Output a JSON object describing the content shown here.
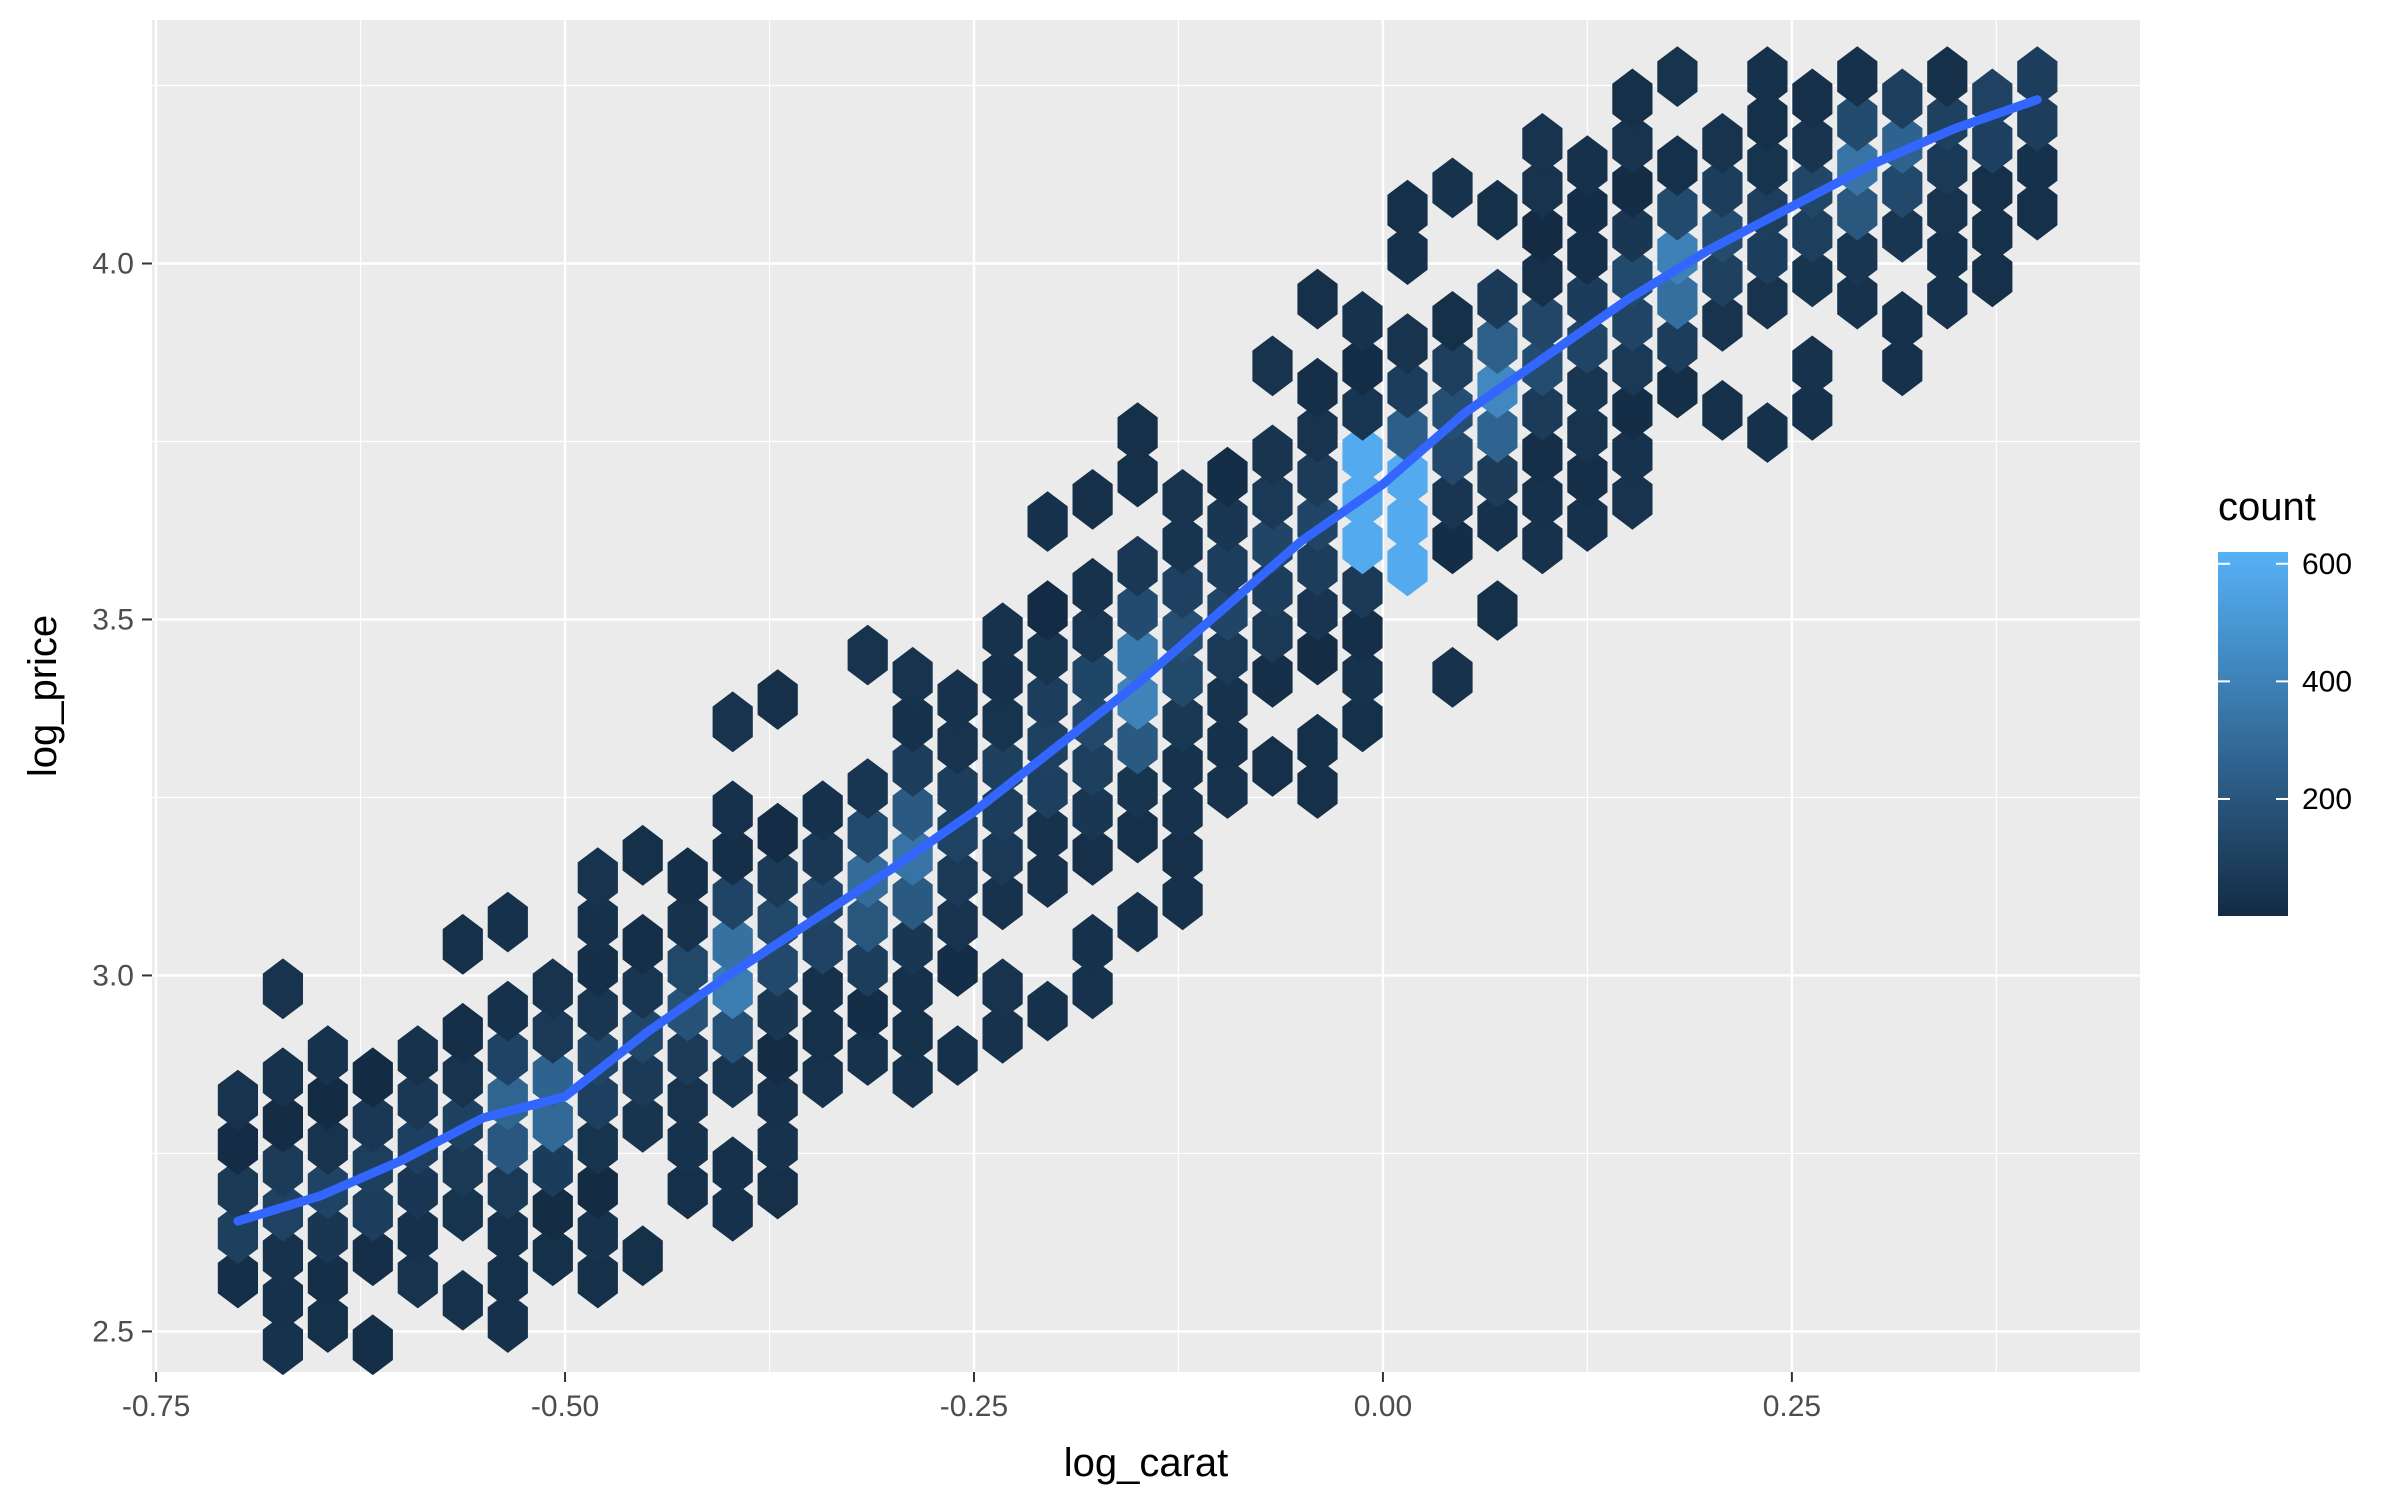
{
  "chart_data": {
    "type": "hexbin",
    "xlabel": "log_carat",
    "ylabel": "log_price",
    "xlim": [
      -0.7525,
      0.4628
    ],
    "ylim": [
      2.443,
      4.342
    ],
    "x_ticks": [
      {
        "value": -0.75,
        "label": "-0.75"
      },
      {
        "value": -0.5,
        "label": "-0.50"
      },
      {
        "value": -0.25,
        "label": "-0.25"
      },
      {
        "value": 0.0,
        "label": "0.00"
      },
      {
        "value": 0.25,
        "label": "0.25"
      }
    ],
    "y_ticks": [
      {
        "value": 2.5,
        "label": "2.5"
      },
      {
        "value": 3.0,
        "label": "3.0"
      },
      {
        "value": 3.5,
        "label": "3.5"
      },
      {
        "value": 4.0,
        "label": "4.0"
      }
    ],
    "grid": true,
    "panel_background": "#ebebeb",
    "hexbin": {
      "x_range": [
        -0.7,
        0.4
      ],
      "color_low": "#132b43",
      "color_high": "#56b1f7",
      "count_range": [
        1,
        620
      ],
      "cells_rendered": "approximate density following the fitted trend; exact per-cell counts are not readable from the figure"
    },
    "smooth_line": {
      "color": "#3366ff",
      "x": [
        -0.7,
        -0.65,
        -0.6,
        -0.55,
        -0.5,
        -0.45,
        -0.4,
        -0.35,
        -0.3,
        -0.25,
        -0.2,
        -0.15,
        -0.1,
        -0.05,
        0.0,
        0.05,
        0.1,
        0.15,
        0.2,
        0.25,
        0.3,
        0.35,
        0.4
      ],
      "y": [
        2.655,
        2.69,
        2.74,
        2.8,
        2.83,
        2.92,
        3.0,
        3.075,
        3.15,
        3.23,
        3.32,
        3.41,
        3.51,
        3.61,
        3.69,
        3.79,
        3.87,
        3.95,
        4.02,
        4.08,
        4.14,
        4.19,
        4.23
      ]
    },
    "legend": {
      "title": "count",
      "placement": "right",
      "ticks": [
        {
          "value": 200,
          "label": "200"
        },
        {
          "value": 400,
          "label": "400"
        },
        {
          "value": 600,
          "label": "600"
        }
      ]
    }
  }
}
